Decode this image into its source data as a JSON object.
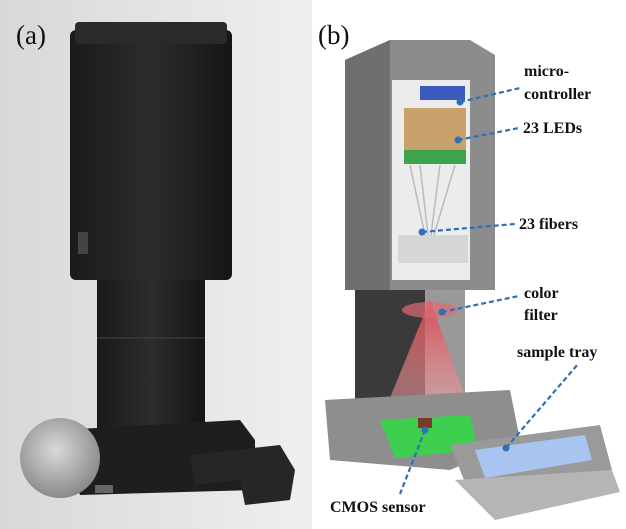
{
  "panels": [
    {
      "label": "(a)"
    },
    {
      "label": "(b)",
      "annotations": [
        {
          "lines": [
            "micro-",
            "controller"
          ]
        },
        {
          "lines": [
            "23 LEDs"
          ]
        },
        {
          "lines": [
            "23 fibers"
          ]
        },
        {
          "lines": [
            "color",
            "filter"
          ]
        },
        {
          "lines": [
            "sample tray"
          ]
        },
        {
          "lines": [
            "CMOS sensor"
          ]
        }
      ]
    }
  ]
}
